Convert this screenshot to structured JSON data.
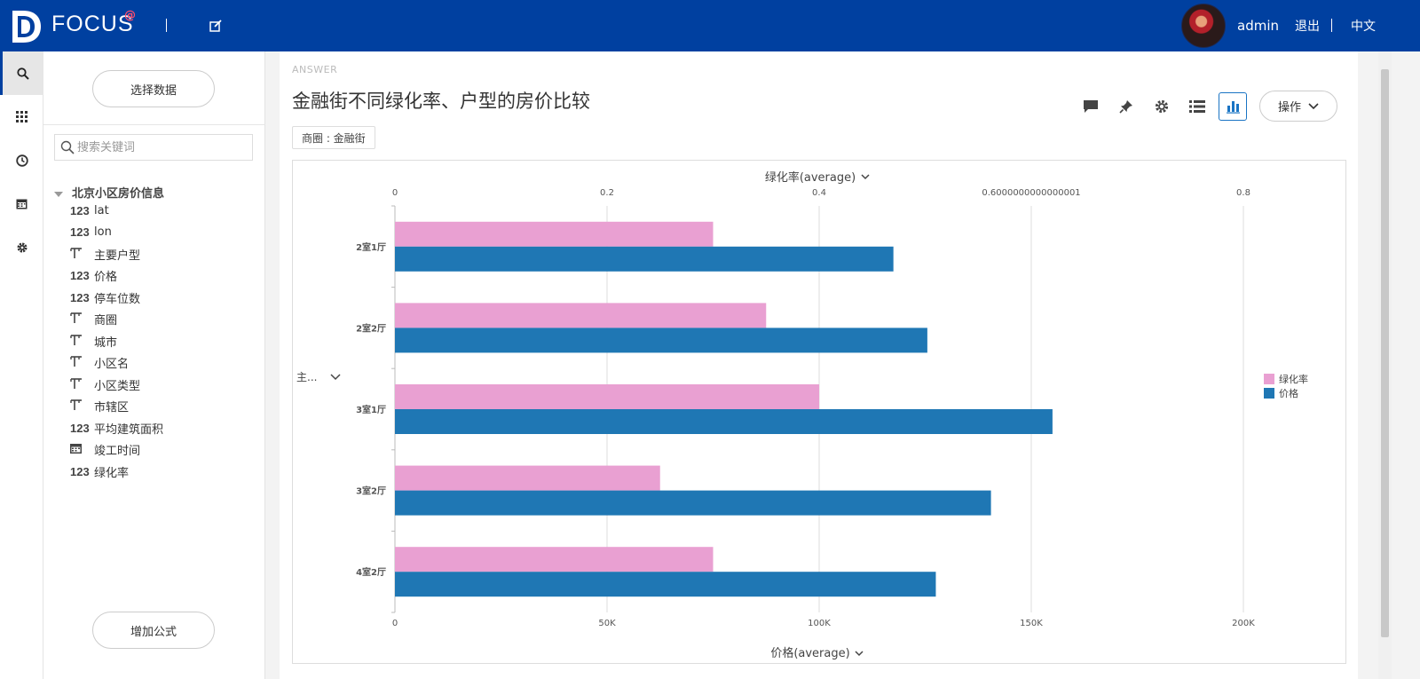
{
  "header": {
    "brand": "FOCUS",
    "brand_at": "@",
    "user": "admin",
    "logout": "退出",
    "language": "中文"
  },
  "rail": {
    "items": [
      {
        "icon": "search-icon"
      },
      {
        "icon": "grid-icon"
      },
      {
        "icon": "clock-icon"
      },
      {
        "icon": "calendar-icon"
      },
      {
        "icon": "gear-icon"
      }
    ]
  },
  "panel": {
    "select_data": "选择数据",
    "search_placeholder": "搜索关键词",
    "source_name": "北京小区房价信息",
    "fields": [
      {
        "type": "123",
        "name": "lat"
      },
      {
        "type": "123",
        "name": "lon"
      },
      {
        "type": "T",
        "name": "主要户型"
      },
      {
        "type": "123",
        "name": "价格"
      },
      {
        "type": "123",
        "name": "停车位数"
      },
      {
        "type": "T",
        "name": "商圈"
      },
      {
        "type": "T",
        "name": "城市"
      },
      {
        "type": "T",
        "name": "小区名"
      },
      {
        "type": "T",
        "name": "小区类型"
      },
      {
        "type": "T",
        "name": "市辖区"
      },
      {
        "type": "123",
        "name": "平均建筑面积"
      },
      {
        "type": "date",
        "name": "竣工时间"
      },
      {
        "type": "123",
        "name": "绿化率"
      }
    ],
    "add_formula": "增加公式"
  },
  "main": {
    "answer_label": "ANSWER",
    "title": "金融街不同绿化率、户型的房价比较",
    "filter": "商圈 : 金融街",
    "operate": "操作"
  },
  "colors": {
    "greening": "#e9a0d2",
    "price": "#1f77b4",
    "header": "#0040a0"
  },
  "chart_data": {
    "type": "bar",
    "orientation": "horizontal",
    "y_axis_label": "主...",
    "categories": [
      "2室1厅",
      "2室2厅",
      "3室1厅",
      "3室2厅",
      "4室2厅"
    ],
    "series": [
      {
        "name": "绿化率",
        "axis": "top",
        "label": "绿化率(average)",
        "values": [
          0.3,
          0.35,
          0.4,
          0.25,
          0.3
        ]
      },
      {
        "name": "价格",
        "axis": "bottom",
        "label": "价格(average)",
        "values": [
          117500,
          125500,
          155000,
          140500,
          127500
        ]
      }
    ],
    "top_axis": {
      "label": "绿化率(average)",
      "range": [
        0,
        0.8
      ],
      "ticks": [
        {
          "v": 0,
          "label": "0"
        },
        {
          "v": 0.2,
          "label": "0.2"
        },
        {
          "v": 0.4,
          "label": "0.4"
        },
        {
          "v": 0.6,
          "label": "0.6000000000000001"
        },
        {
          "v": 0.8,
          "label": "0.8"
        }
      ]
    },
    "bottom_axis": {
      "label": "价格(average)",
      "range": [
        0,
        200000
      ],
      "ticks": [
        {
          "v": 0,
          "label": "0"
        },
        {
          "v": 50000,
          "label": "50K"
        },
        {
          "v": 100000,
          "label": "100K"
        },
        {
          "v": 150000,
          "label": "150K"
        },
        {
          "v": 200000,
          "label": "200K"
        }
      ]
    },
    "legend_position": "right",
    "grid": true
  }
}
